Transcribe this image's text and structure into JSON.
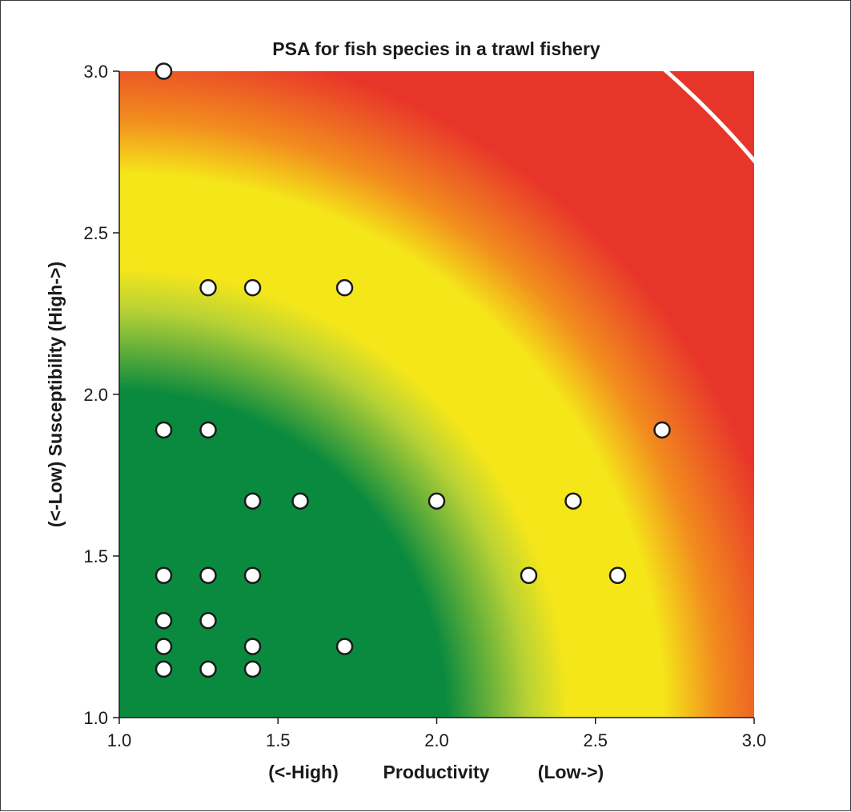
{
  "chart_data": {
    "type": "scatter",
    "title": "PSA for fish species in a trawl fishery",
    "xlabel": {
      "left": "(<-High)",
      "center": "Productivity",
      "right": "(Low->)"
    },
    "ylabel": "(<-Low)  Susceptibility  (High->)",
    "xlim": [
      1.0,
      3.0
    ],
    "ylim": [
      1.0,
      3.0
    ],
    "x_ticks": [
      "1.0",
      "1.5",
      "2.0",
      "2.5",
      "3.0"
    ],
    "y_ticks": [
      "1.0",
      "1.5",
      "2.0",
      "2.5",
      "3.0"
    ],
    "grid": false,
    "legend": "none",
    "points": [
      {
        "x": 1.14,
        "y": 3.0
      },
      {
        "x": 1.28,
        "y": 2.33
      },
      {
        "x": 1.42,
        "y": 2.33
      },
      {
        "x": 1.71,
        "y": 2.33
      },
      {
        "x": 1.14,
        "y": 1.89
      },
      {
        "x": 1.28,
        "y": 1.89
      },
      {
        "x": 2.71,
        "y": 1.89
      },
      {
        "x": 1.42,
        "y": 1.67
      },
      {
        "x": 1.57,
        "y": 1.67
      },
      {
        "x": 2.0,
        "y": 1.67
      },
      {
        "x": 2.43,
        "y": 1.67
      },
      {
        "x": 1.14,
        "y": 1.44
      },
      {
        "x": 1.28,
        "y": 1.44
      },
      {
        "x": 1.42,
        "y": 1.44
      },
      {
        "x": 2.29,
        "y": 1.44
      },
      {
        "x": 2.57,
        "y": 1.44
      },
      {
        "x": 1.14,
        "y": 1.3
      },
      {
        "x": 1.28,
        "y": 1.3
      },
      {
        "x": 1.14,
        "y": 1.22
      },
      {
        "x": 1.42,
        "y": 1.22
      },
      {
        "x": 1.71,
        "y": 1.22
      },
      {
        "x": 1.14,
        "y": 1.15
      },
      {
        "x": 1.28,
        "y": 1.15
      },
      {
        "x": 1.42,
        "y": 1.15
      }
    ],
    "risk_zones": [
      {
        "zone": "low",
        "color": "#0a8a3e"
      },
      {
        "zone": "medium",
        "color": "#f5e61a"
      },
      {
        "zone": "high",
        "color": "#e8352a"
      }
    ],
    "risk_boundaries": [
      2.64,
      3.18
    ],
    "point_fill": "#ffffff",
    "point_stroke": "#1a1a1a",
    "boundary_color": "#ffffff"
  }
}
